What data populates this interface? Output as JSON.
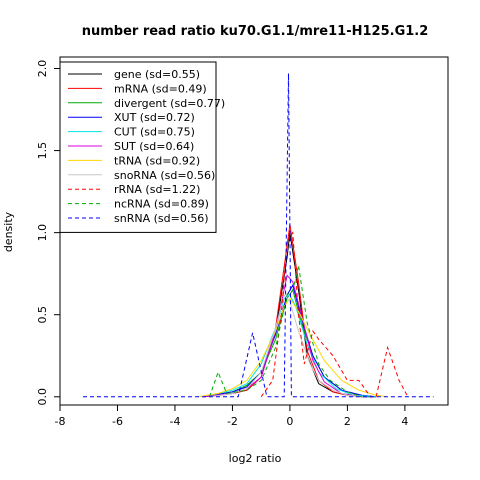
{
  "chart_data": {
    "type": "line",
    "title": "number read ratio ku70.G1.1/mre11-H125.G1.2",
    "xlabel": "log2 ratio",
    "ylabel": "density",
    "xlim": [
      -8,
      5.5
    ],
    "ylim": [
      -0.05,
      2.07
    ],
    "xticks": [
      -8,
      -6,
      -4,
      -2,
      0,
      2,
      4
    ],
    "yticks": [
      0.0,
      0.5,
      1.0,
      1.5,
      2.0
    ],
    "xtick_labels": [
      "-8",
      "-6",
      "-4",
      "-2",
      "0",
      "2",
      "4"
    ],
    "ytick_labels": [
      "0.0",
      "0.5",
      "1.0",
      "1.5",
      "2.0"
    ],
    "grid": false,
    "legend_position": "top-left",
    "series": [
      {
        "name": "gene (sd=0.55)",
        "color": "#000000",
        "dash": "solid",
        "x": [
          -3.0,
          -2.5,
          -2.0,
          -1.5,
          -1.0,
          -0.5,
          -0.1,
          0.0,
          0.3,
          0.6,
          1.0,
          1.5,
          2.0,
          2.5,
          3.0
        ],
        "y": [
          0.0,
          0.01,
          0.02,
          0.04,
          0.12,
          0.4,
          0.85,
          1.0,
          0.65,
          0.25,
          0.08,
          0.03,
          0.01,
          0.0,
          0.0
        ]
      },
      {
        "name": "mRNA (sd=0.49)",
        "color": "#ff0000",
        "dash": "solid",
        "x": [
          -2.8,
          -2.0,
          -1.5,
          -1.0,
          -0.5,
          -0.1,
          0.0,
          0.3,
          0.6,
          1.0,
          1.5,
          2.0,
          2.6
        ],
        "y": [
          0.0,
          0.02,
          0.04,
          0.12,
          0.42,
          0.92,
          1.05,
          0.7,
          0.28,
          0.1,
          0.03,
          0.01,
          0.0
        ]
      },
      {
        "name": "divergent (sd=0.77)",
        "color": "#00aa00",
        "dash": "solid",
        "x": [
          -3.0,
          -2.0,
          -1.5,
          -1.0,
          -0.5,
          -0.1,
          0.1,
          0.4,
          0.8,
          1.2,
          1.8,
          2.4,
          3.0
        ],
        "y": [
          0.0,
          0.03,
          0.07,
          0.15,
          0.35,
          0.6,
          0.65,
          0.45,
          0.25,
          0.12,
          0.04,
          0.01,
          0.0
        ]
      },
      {
        "name": "XUT (sd=0.72)",
        "color": "#0000ff",
        "dash": "solid",
        "x": [
          -3.0,
          -2.0,
          -1.5,
          -1.0,
          -0.5,
          -0.1,
          0.1,
          0.4,
          0.8,
          1.2,
          1.8,
          2.5,
          3.0
        ],
        "y": [
          0.0,
          0.03,
          0.06,
          0.15,
          0.38,
          0.62,
          0.68,
          0.48,
          0.25,
          0.12,
          0.04,
          0.01,
          0.0
        ]
      },
      {
        "name": "CUT (sd=0.75)",
        "color": "#00e5e5",
        "dash": "solid",
        "x": [
          -3.0,
          -2.0,
          -1.5,
          -1.0,
          -0.5,
          -0.2,
          0.0,
          0.2,
          0.6,
          1.0,
          1.6,
          2.2,
          3.0
        ],
        "y": [
          0.0,
          0.04,
          0.08,
          0.2,
          0.42,
          0.6,
          0.62,
          0.55,
          0.32,
          0.15,
          0.05,
          0.01,
          0.0
        ]
      },
      {
        "name": "SUT (sd=0.64)",
        "color": "#dd00dd",
        "dash": "solid",
        "x": [
          -3.0,
          -2.0,
          -1.5,
          -1.0,
          -0.5,
          -0.1,
          0.1,
          0.4,
          0.8,
          1.2,
          1.8,
          2.5
        ],
        "y": [
          0.0,
          0.02,
          0.05,
          0.12,
          0.4,
          0.74,
          0.7,
          0.5,
          0.22,
          0.09,
          0.02,
          0.0
        ]
      },
      {
        "name": "tRNA (sd=0.92)",
        "color": "#ffd700",
        "dash": "solid",
        "x": [
          -3.2,
          -2.5,
          -2.0,
          -1.5,
          -1.0,
          -0.5,
          -0.2,
          0.0,
          0.3,
          0.7,
          1.2,
          1.8,
          2.4,
          3.0,
          3.4
        ],
        "y": [
          0.0,
          0.02,
          0.05,
          0.1,
          0.22,
          0.4,
          0.55,
          0.6,
          0.52,
          0.38,
          0.22,
          0.1,
          0.04,
          0.01,
          0.0
        ]
      },
      {
        "name": "snoRNA (sd=0.56)",
        "color": "#c8c8c8",
        "dash": "solid",
        "x": [
          -2.8,
          -2.0,
          -1.5,
          -1.0,
          -0.5,
          -0.2,
          0.0,
          0.3,
          0.7,
          1.0,
          1.5,
          2.0,
          2.6
        ],
        "y": [
          0.0,
          0.02,
          0.05,
          0.15,
          0.42,
          0.62,
          0.58,
          0.4,
          0.2,
          0.1,
          0.04,
          0.01,
          0.0
        ]
      },
      {
        "name": "rRNA (sd=1.22)",
        "color": "#ff0000",
        "dash": "dashed",
        "x": [
          -1.0,
          -0.6,
          -0.3,
          -0.1,
          0.1,
          0.3,
          0.5,
          0.8,
          1.0,
          1.5,
          2.0,
          2.4,
          2.8,
          3.0,
          3.4,
          3.8,
          4.1
        ],
        "y": [
          0.0,
          0.1,
          0.5,
          0.95,
          1.0,
          0.5,
          0.2,
          0.4,
          0.35,
          0.25,
          0.1,
          0.1,
          0.0,
          0.0,
          0.3,
          0.1,
          0.0
        ]
      },
      {
        "name": "ncRNA (sd=0.89)",
        "color": "#00aa00",
        "dash": "dashed",
        "x": [
          -2.8,
          -2.5,
          -2.2,
          -1.5,
          -1.0,
          -0.5,
          -0.1,
          0.1,
          0.3,
          0.6,
          1.0,
          1.4,
          2.0,
          2.5
        ],
        "y": [
          0.0,
          0.15,
          0.02,
          0.04,
          0.1,
          0.3,
          0.62,
          0.65,
          0.8,
          0.45,
          0.2,
          0.1,
          0.03,
          0.0
        ]
      },
      {
        "name": "snRNA (sd=0.56)",
        "color": "#0000ff",
        "dash": "dashed",
        "x": [
          -7.2,
          -3.0,
          -1.8,
          -1.3,
          -0.8,
          -0.5,
          -0.2,
          -0.05,
          0.05,
          0.2,
          0.5,
          1.0,
          1.5,
          2.0,
          3.0,
          5.0
        ],
        "y": [
          0.0,
          0.0,
          0.0,
          0.39,
          0.0,
          0.0,
          0.0,
          1.97,
          0.0,
          0.0,
          0.0,
          0.0,
          0.0,
          0.0,
          0.0,
          0.0
        ]
      }
    ]
  }
}
